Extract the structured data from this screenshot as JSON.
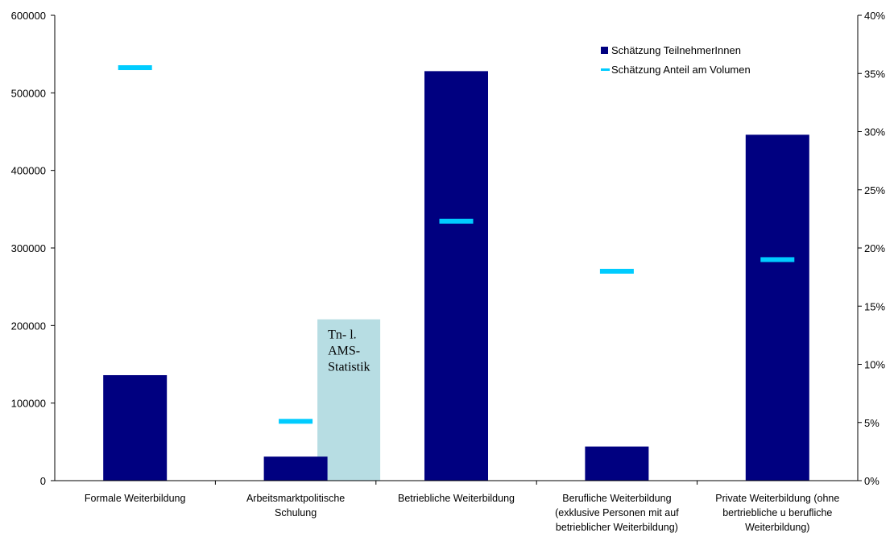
{
  "chart_data": {
    "type": "bar",
    "title": "",
    "categories": [
      [
        "Formale Weiterbildung"
      ],
      [
        "Arbeitsmarktpolitische",
        "Schulung"
      ],
      [
        "Betriebliche Weiterbildung"
      ],
      [
        "Berufliche Weiterbildung",
        "(exklusive Personen mit auf",
        "betrieblicher Weiterbildung)"
      ],
      [
        "Private Weiterbildung (ohne",
        "bertriebliche u berufliche",
        "Weiterbildung)"
      ]
    ],
    "series": [
      {
        "name": "Schätzung TeilnehmerInnen",
        "kind": "bar",
        "axis": "left",
        "color": "#000080",
        "values": [
          136000,
          31000,
          528000,
          44000,
          446000
        ]
      },
      {
        "name": "Schätzung Anteil am Volumen",
        "kind": "marker",
        "axis": "right",
        "color": "#00CCFF",
        "values": [
          35.5,
          5.1,
          22.3,
          18.0,
          19.0
        ]
      }
    ],
    "annotation": {
      "category_index": 1,
      "value": 208000,
      "color": "#B7DDE3",
      "lines": [
        "Tn- l.",
        "AMS-",
        "Statistik"
      ]
    },
    "y_left": {
      "min": 0,
      "max": 600000,
      "step": 100000,
      "ticks": [
        "0",
        "100000",
        "200000",
        "300000",
        "400000",
        "500000",
        "600000"
      ]
    },
    "y_right": {
      "min": 0,
      "max": 40,
      "step": 5,
      "ticks": [
        "0%",
        "5%",
        "10%",
        "15%",
        "20%",
        "25%",
        "30%",
        "35%",
        "40%"
      ]
    },
    "legend_position": "top-right",
    "grid": false
  }
}
